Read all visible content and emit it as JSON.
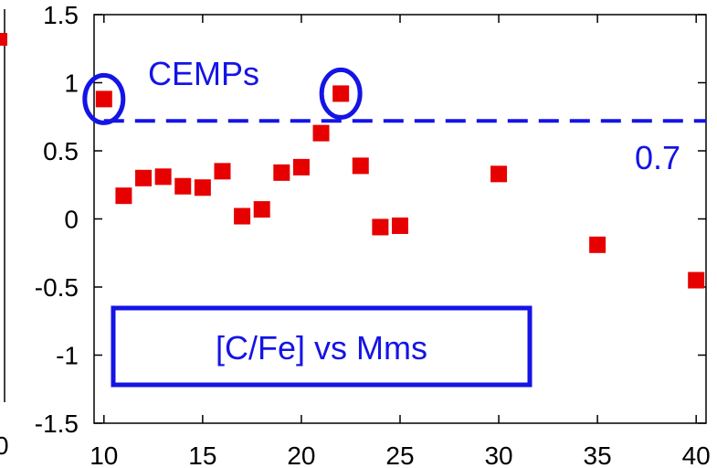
{
  "chart_data": {
    "type": "scatter",
    "title": "",
    "xlabel": "",
    "ylabel": "",
    "xlim": [
      9.5,
      40.5
    ],
    "ylim": [
      -1.5,
      1.5
    ],
    "x_ticks": [
      10,
      15,
      20,
      25,
      30,
      35,
      40
    ],
    "y_ticks": [
      -1.5,
      -1,
      -0.5,
      0,
      0.5,
      1,
      1.5
    ],
    "x_tick_labels": [
      "10",
      "15",
      "20",
      "25",
      "30",
      "35",
      "40"
    ],
    "y_tick_labels": [
      "-1.5",
      "-1",
      "-0.5",
      "0",
      "0.5",
      "1",
      "1.5"
    ],
    "grid": false,
    "series": [
      {
        "color": "#e60000",
        "marker": "square",
        "points": [
          {
            "x": 10,
            "y": 0.88
          },
          {
            "x": 11,
            "y": 0.17
          },
          {
            "x": 12,
            "y": 0.3
          },
          {
            "x": 13,
            "y": 0.31
          },
          {
            "x": 14,
            "y": 0.24
          },
          {
            "x": 15,
            "y": 0.23
          },
          {
            "x": 16,
            "y": 0.35
          },
          {
            "x": 17,
            "y": 0.02
          },
          {
            "x": 18,
            "y": 0.07
          },
          {
            "x": 19,
            "y": 0.34
          },
          {
            "x": 20,
            "y": 0.38
          },
          {
            "x": 21,
            "y": 0.63
          },
          {
            "x": 22,
            "y": 0.92
          },
          {
            "x": 23,
            "y": 0.39
          },
          {
            "x": 24,
            "y": -0.06
          },
          {
            "x": 25,
            "y": -0.05
          },
          {
            "x": 30,
            "y": 0.33
          },
          {
            "x": 35,
            "y": -0.19
          },
          {
            "x": 40,
            "y": -0.45
          }
        ]
      }
    ],
    "threshold": {
      "y": 0.72,
      "label": "0.7",
      "color": "#1414e6",
      "style": "dashed"
    },
    "annotations": {
      "cemps_label": "CEMPs",
      "box_label": "[C/Fe] vs Mms",
      "circled_points": [
        {
          "x": 10,
          "y": 0.88
        },
        {
          "x": 22,
          "y": 0.92
        }
      ],
      "color": "#1414e6"
    },
    "left_fragment": {
      "y_tick_labels": [
        "0"
      ],
      "x_tick_labels": [
        "0"
      ],
      "marker_color": "#e60000"
    }
  }
}
